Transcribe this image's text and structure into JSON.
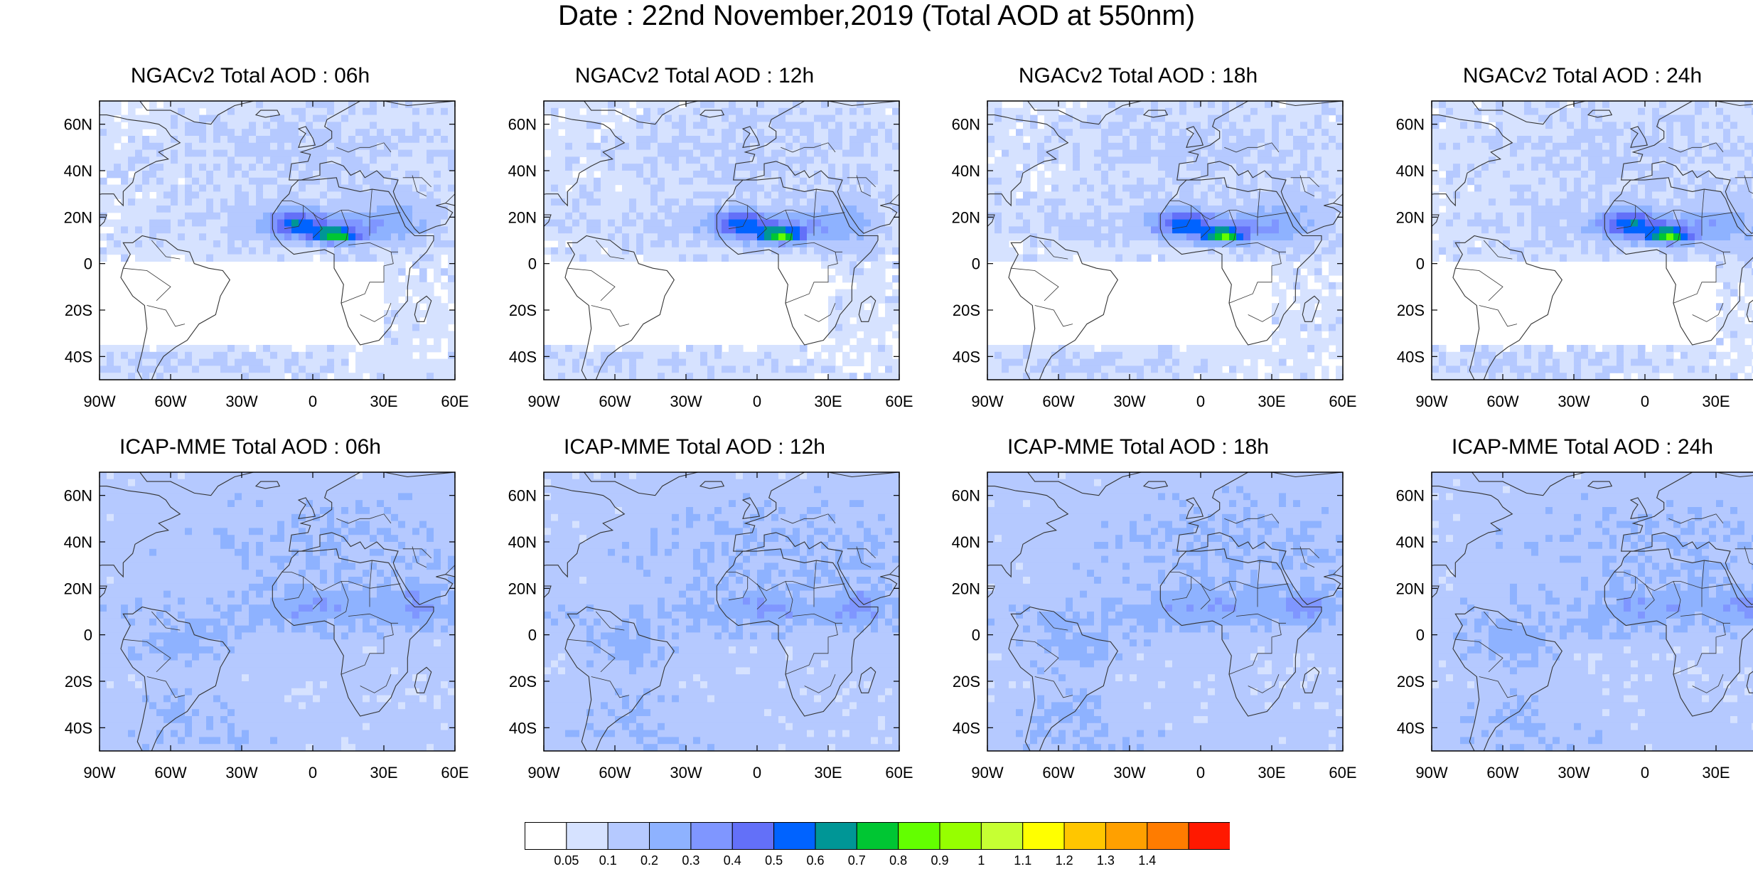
{
  "title": "Date : 22nd November,2019 (Total AOD at 550nm)",
  "colors": {
    "levels": [
      "#ffffff",
      "#d6e2ff",
      "#b5c9ff",
      "#8eb2ff",
      "#7f96ff",
      "#6370f8",
      "#0063ff",
      "#009696",
      "#00c633",
      "#63ff00",
      "#96ff00",
      "#c6ff33",
      "#ffff00",
      "#ffc600",
      "#ffa000",
      "#ff7c00",
      "#ff1900"
    ],
    "land_outline": "#333333",
    "frame": "#000000"
  },
  "colorbar": {
    "labels": [
      "0.05",
      "0.1",
      "0.2",
      "0.3",
      "0.4",
      "0.5",
      "0.6",
      "0.7",
      "0.8",
      "0.9",
      "1",
      "1.1",
      "1.2",
      "1.3",
      "1.4"
    ]
  },
  "map_grid": {
    "lon_range": [
      -90,
      60
    ],
    "lat_range": [
      -50,
      70
    ],
    "lon_ticks": [
      -90,
      -60,
      -30,
      0,
      30,
      60
    ],
    "lat_ticks": [
      60,
      40,
      20,
      0,
      -20,
      -40
    ],
    "lon_labels": [
      "90W",
      "60W",
      "30W",
      "0",
      "30E",
      "60E"
    ],
    "lat_labels": [
      "60N",
      "40N",
      "20N",
      "0",
      "20S",
      "40S"
    ]
  },
  "panels": [
    {
      "title": "NGACv2 Total AOD : 06h",
      "model": "ngac",
      "seed": 11
    },
    {
      "title": "NGACv2 Total AOD : 12h",
      "model": "ngac",
      "seed": 23
    },
    {
      "title": "NGACv2 Total AOD : 18h",
      "model": "ngac",
      "seed": 37
    },
    {
      "title": "NGACv2 Total AOD : 24h",
      "model": "ngac",
      "seed": 41
    },
    {
      "title": "ICAP-MME Total AOD : 06h",
      "model": "icap",
      "seed": 53
    },
    {
      "title": "ICAP-MME Total AOD : 12h",
      "model": "icap",
      "seed": 67
    },
    {
      "title": "ICAP-MME Total AOD : 18h",
      "model": "icap",
      "seed": 71
    },
    {
      "title": "ICAP-MME Total AOD : 24h",
      "model": "icap",
      "seed": 89
    }
  ]
}
